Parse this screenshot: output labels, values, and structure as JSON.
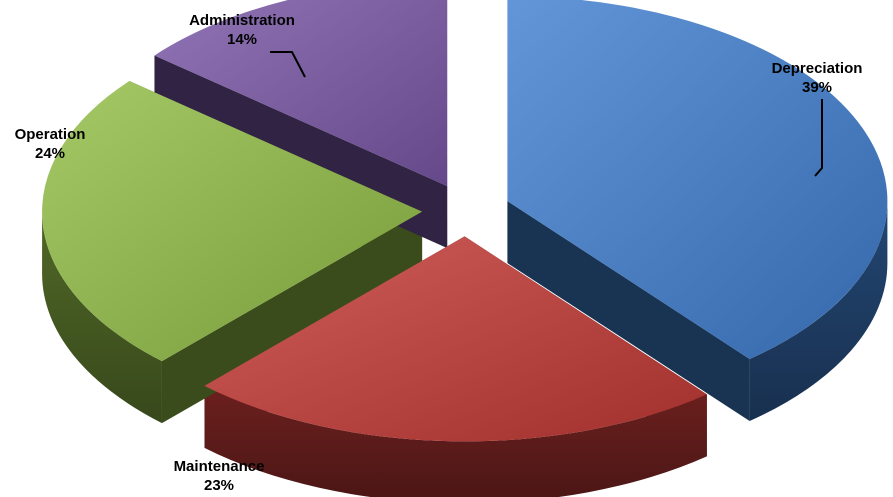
{
  "chart_data": {
    "type": "pie",
    "style": "3d-exploded",
    "legend": "none",
    "slices": [
      {
        "label": "Depreciation",
        "value": 39,
        "percent_label": "39%",
        "color": "#3f7fd0"
      },
      {
        "label": "Maintenance",
        "value": 23,
        "percent_label": "23%",
        "color": "#c43a36"
      },
      {
        "label": "Operation",
        "value": 24,
        "percent_label": "24%",
        "color": "#92bd46"
      },
      {
        "label": "Administration",
        "value": 14,
        "percent_label": "14%",
        "color": "#7a58a7"
      }
    ]
  }
}
